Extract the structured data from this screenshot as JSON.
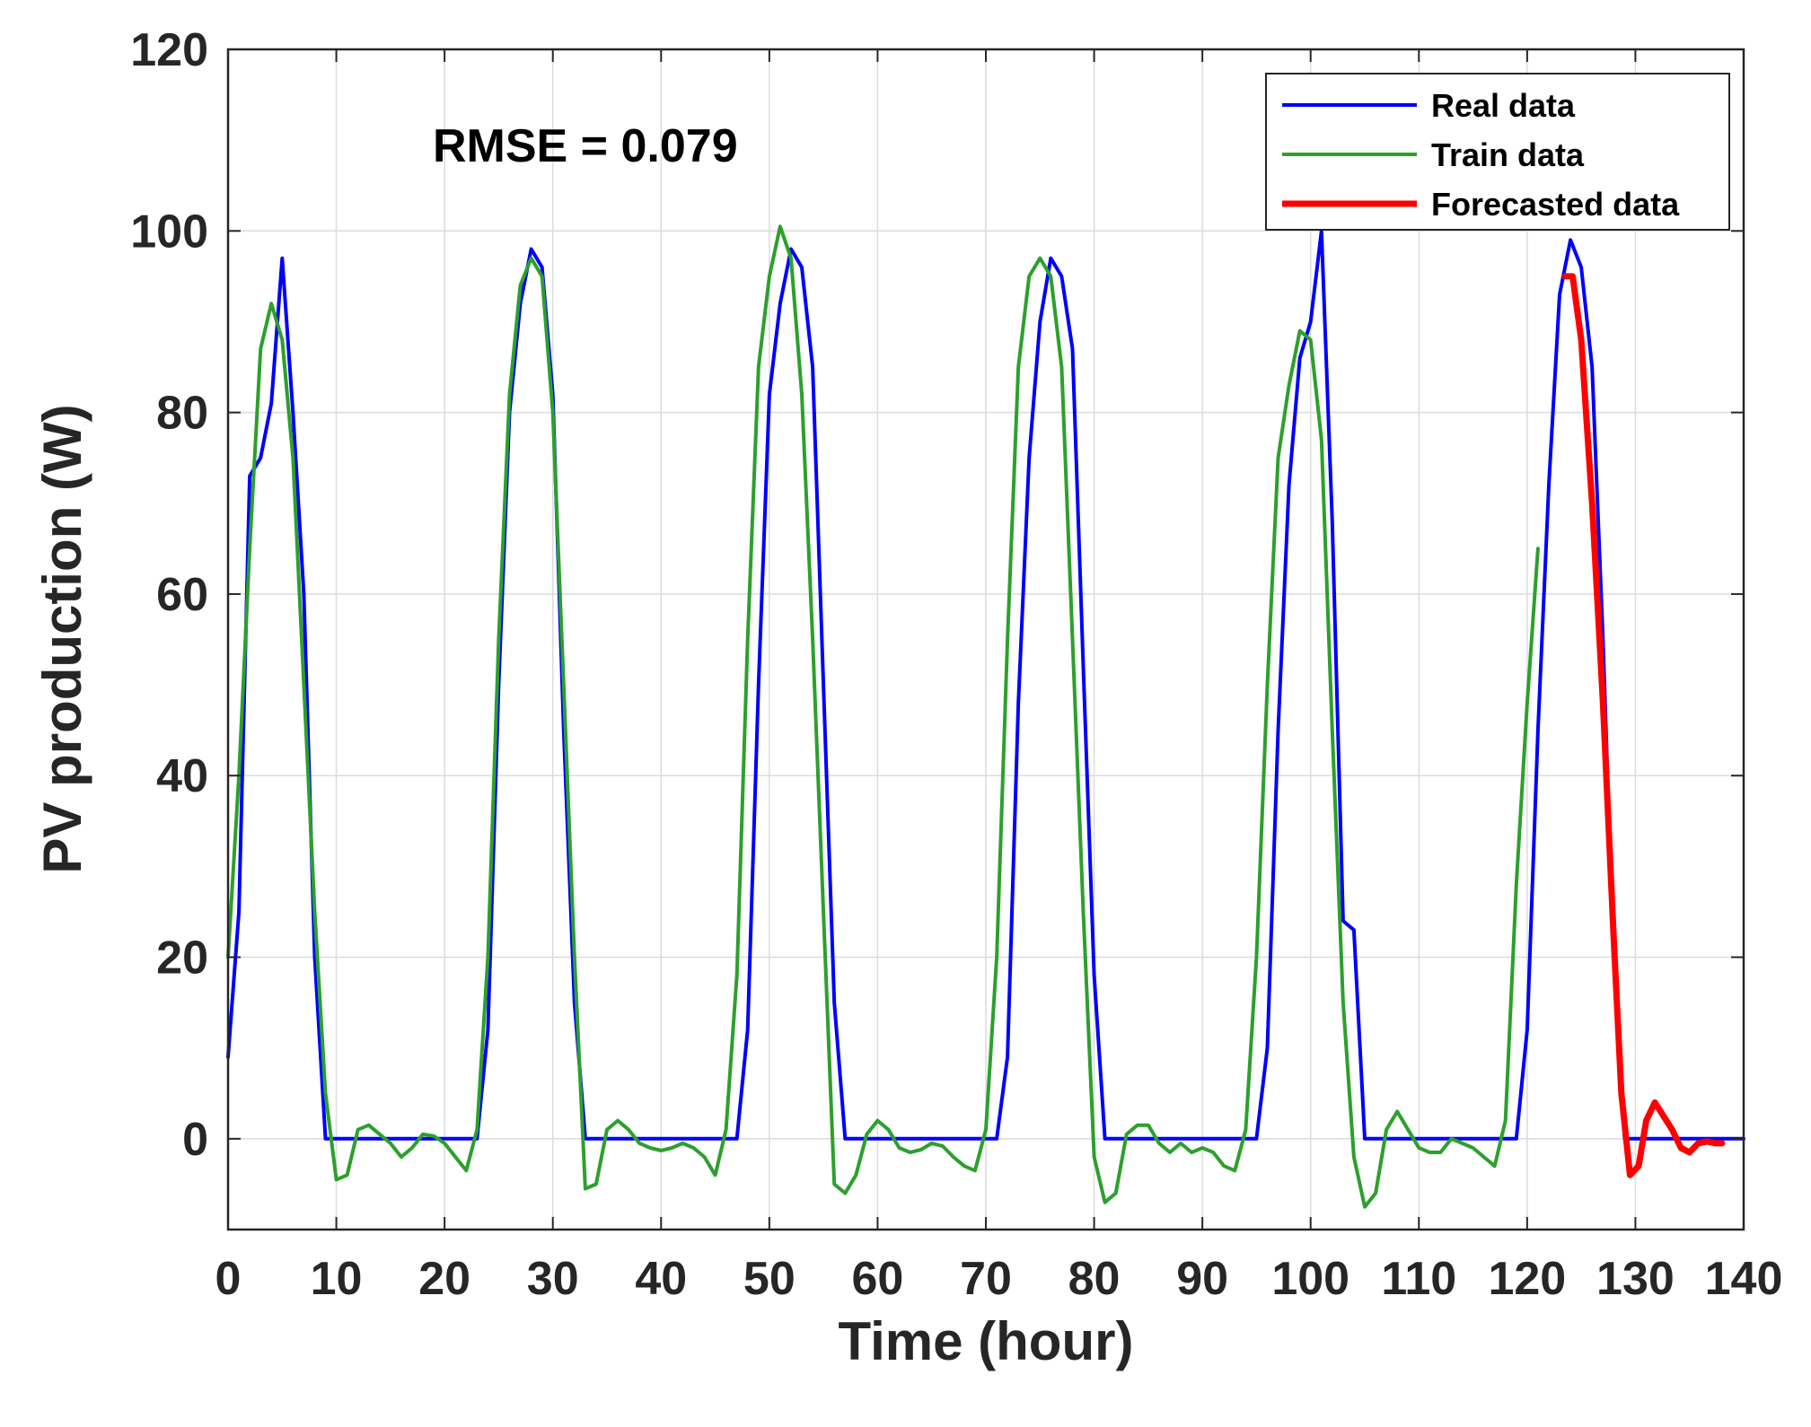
{
  "chart_data": {
    "type": "line",
    "title": "",
    "xlabel": "Time (hour)",
    "ylabel": "PV production (W)",
    "xlim": [
      0,
      140
    ],
    "ylim": [
      -10,
      120
    ],
    "xticks": [
      0,
      10,
      20,
      30,
      40,
      50,
      60,
      70,
      80,
      90,
      100,
      110,
      120,
      130,
      140
    ],
    "yticks": [
      0,
      20,
      40,
      60,
      80,
      100,
      120
    ],
    "grid": true,
    "legend_position": "top-right",
    "annotation": "RMSE = 0.079",
    "series": [
      {
        "name": "Real data",
        "color": "#0000ff",
        "points": [
          [
            0,
            9
          ],
          [
            1,
            25
          ],
          [
            2,
            73
          ],
          [
            3,
            75
          ],
          [
            4,
            81
          ],
          [
            5,
            97
          ],
          [
            6,
            80
          ],
          [
            7,
            60
          ],
          [
            8,
            20
          ],
          [
            9,
            0
          ],
          [
            10,
            0
          ],
          [
            11,
            0
          ],
          [
            12,
            0
          ],
          [
            13,
            0
          ],
          [
            14,
            0
          ],
          [
            15,
            0
          ],
          [
            16,
            0
          ],
          [
            17,
            0
          ],
          [
            18,
            0
          ],
          [
            19,
            0
          ],
          [
            20,
            0
          ],
          [
            21,
            0
          ],
          [
            22,
            0
          ],
          [
            23,
            0
          ],
          [
            24,
            12
          ],
          [
            25,
            50
          ],
          [
            26,
            80
          ],
          [
            27,
            92
          ],
          [
            28,
            98
          ],
          [
            29,
            96
          ],
          [
            30,
            82
          ],
          [
            31,
            45
          ],
          [
            32,
            15
          ],
          [
            33,
            0
          ],
          [
            34,
            0
          ],
          [
            35,
            0
          ],
          [
            36,
            0
          ],
          [
            37,
            0
          ],
          [
            38,
            0
          ],
          [
            39,
            0
          ],
          [
            40,
            0
          ],
          [
            41,
            0
          ],
          [
            42,
            0
          ],
          [
            43,
            0
          ],
          [
            44,
            0
          ],
          [
            45,
            0
          ],
          [
            46,
            0
          ],
          [
            47,
            0
          ],
          [
            48,
            12
          ],
          [
            49,
            50
          ],
          [
            50,
            82
          ],
          [
            51,
            92
          ],
          [
            52,
            98
          ],
          [
            53,
            96
          ],
          [
            54,
            85
          ],
          [
            55,
            50
          ],
          [
            56,
            15
          ],
          [
            57,
            0
          ],
          [
            58,
            0
          ],
          [
            59,
            0
          ],
          [
            60,
            0
          ],
          [
            61,
            0
          ],
          [
            62,
            0
          ],
          [
            63,
            0
          ],
          [
            64,
            0
          ],
          [
            65,
            0
          ],
          [
            66,
            0
          ],
          [
            67,
            0
          ],
          [
            68,
            0
          ],
          [
            69,
            0
          ],
          [
            70,
            0
          ],
          [
            71,
            0
          ],
          [
            72,
            9
          ],
          [
            73,
            48
          ],
          [
            74,
            75
          ],
          [
            75,
            90
          ],
          [
            76,
            97
          ],
          [
            77,
            95
          ],
          [
            78,
            87
          ],
          [
            79,
            52
          ],
          [
            80,
            18
          ],
          [
            81,
            0
          ],
          [
            82,
            0
          ],
          [
            83,
            0
          ],
          [
            84,
            0
          ],
          [
            85,
            0
          ],
          [
            86,
            0
          ],
          [
            87,
            0
          ],
          [
            88,
            0
          ],
          [
            89,
            0
          ],
          [
            90,
            0
          ],
          [
            91,
            0
          ],
          [
            92,
            0
          ],
          [
            93,
            0
          ],
          [
            94,
            0
          ],
          [
            95,
            0
          ],
          [
            96,
            10
          ],
          [
            97,
            45
          ],
          [
            98,
            72
          ],
          [
            99,
            86
          ],
          [
            100,
            90
          ],
          [
            101,
            100
          ],
          [
            102,
            68
          ],
          [
            103,
            24
          ],
          [
            104,
            23
          ],
          [
            105,
            0
          ],
          [
            106,
            0
          ],
          [
            107,
            0
          ],
          [
            108,
            0
          ],
          [
            109,
            0
          ],
          [
            110,
            0
          ],
          [
            111,
            0
          ],
          [
            112,
            0
          ],
          [
            113,
            0
          ],
          [
            114,
            0
          ],
          [
            115,
            0
          ],
          [
            116,
            0
          ],
          [
            117,
            0
          ],
          [
            118,
            0
          ],
          [
            119,
            0
          ],
          [
            120,
            12
          ],
          [
            121,
            45
          ],
          [
            122,
            72
          ],
          [
            123,
            93
          ],
          [
            124,
            99
          ],
          [
            125,
            96
          ],
          [
            126,
            85
          ],
          [
            127,
            55
          ],
          [
            128,
            20
          ],
          [
            129,
            0
          ],
          [
            130,
            0
          ],
          [
            131,
            0
          ],
          [
            132,
            0
          ],
          [
            133,
            0
          ],
          [
            134,
            0
          ],
          [
            135,
            0
          ],
          [
            136,
            0
          ],
          [
            137,
            0
          ],
          [
            138,
            0
          ],
          [
            139,
            0
          ],
          [
            140,
            0
          ]
        ]
      },
      {
        "name": "Train data",
        "color": "#2ca02c",
        "points": [
          [
            0,
            20
          ],
          [
            1,
            40
          ],
          [
            2,
            65
          ],
          [
            3,
            87
          ],
          [
            4,
            92
          ],
          [
            5,
            88
          ],
          [
            6,
            75
          ],
          [
            7,
            50
          ],
          [
            8,
            25
          ],
          [
            9,
            5
          ],
          [
            10,
            -4.5
          ],
          [
            11,
            -4
          ],
          [
            12,
            1
          ],
          [
            13,
            1.5
          ],
          [
            14,
            0.5
          ],
          [
            15,
            -0.5
          ],
          [
            16,
            -2
          ],
          [
            17,
            -1
          ],
          [
            18,
            0.5
          ],
          [
            19,
            0.3
          ],
          [
            20,
            -0.5
          ],
          [
            21,
            -2
          ],
          [
            22,
            -3.5
          ],
          [
            23,
            1
          ],
          [
            24,
            20
          ],
          [
            25,
            55
          ],
          [
            26,
            82
          ],
          [
            27,
            94
          ],
          [
            28,
            97
          ],
          [
            29,
            95
          ],
          [
            30,
            80
          ],
          [
            31,
            50
          ],
          [
            32,
            20
          ],
          [
            33,
            -5.5
          ],
          [
            34,
            -5
          ],
          [
            35,
            1
          ],
          [
            36,
            2
          ],
          [
            37,
            1
          ],
          [
            38,
            -0.5
          ],
          [
            39,
            -1
          ],
          [
            40,
            -1.3
          ],
          [
            41,
            -1
          ],
          [
            42,
            -0.5
          ],
          [
            43,
            -1
          ],
          [
            44,
            -2
          ],
          [
            45,
            -4
          ],
          [
            46,
            1
          ],
          [
            47,
            18
          ],
          [
            48,
            55
          ],
          [
            49,
            85
          ],
          [
            50,
            95
          ],
          [
            51,
            100.5
          ],
          [
            52,
            97
          ],
          [
            53,
            82
          ],
          [
            54,
            55
          ],
          [
            55,
            25
          ],
          [
            56,
            -5
          ],
          [
            57,
            -6
          ],
          [
            58,
            -4
          ],
          [
            59,
            0.5
          ],
          [
            60,
            2
          ],
          [
            61,
            1
          ],
          [
            62,
            -1
          ],
          [
            63,
            -1.5
          ],
          [
            64,
            -1.2
          ],
          [
            65,
            -0.5
          ],
          [
            66,
            -0.8
          ],
          [
            67,
            -2
          ],
          [
            68,
            -3
          ],
          [
            69,
            -3.5
          ],
          [
            70,
            1
          ],
          [
            71,
            20
          ],
          [
            72,
            55
          ],
          [
            73,
            85
          ],
          [
            74,
            95
          ],
          [
            75,
            97
          ],
          [
            76,
            95
          ],
          [
            77,
            85
          ],
          [
            78,
            55
          ],
          [
            79,
            25
          ],
          [
            80,
            -2
          ],
          [
            81,
            -7
          ],
          [
            82,
            -6
          ],
          [
            83,
            0.5
          ],
          [
            84,
            1.5
          ],
          [
            85,
            1.5
          ],
          [
            86,
            -0.5
          ],
          [
            87,
            -1.5
          ],
          [
            88,
            -0.5
          ],
          [
            89,
            -1.5
          ],
          [
            90,
            -1
          ],
          [
            91,
            -1.5
          ],
          [
            92,
            -3
          ],
          [
            93,
            -3.5
          ],
          [
            94,
            1
          ],
          [
            95,
            20
          ],
          [
            96,
            50
          ],
          [
            97,
            75
          ],
          [
            98,
            83
          ],
          [
            99,
            89
          ],
          [
            100,
            88
          ],
          [
            101,
            77
          ],
          [
            102,
            45
          ],
          [
            103,
            15
          ],
          [
            104,
            -2
          ],
          [
            105,
            -7.5
          ],
          [
            106,
            -6
          ],
          [
            107,
            1
          ],
          [
            108,
            3
          ],
          [
            109,
            1
          ],
          [
            110,
            -1
          ],
          [
            111,
            -1.5
          ],
          [
            112,
            -1.5
          ],
          [
            113,
            0
          ],
          [
            114,
            -0.5
          ],
          [
            115,
            -1
          ],
          [
            116,
            -2
          ],
          [
            117,
            -3
          ],
          [
            118,
            2
          ],
          [
            119,
            28
          ],
          [
            120,
            48
          ],
          [
            121,
            65
          ]
        ]
      },
      {
        "name": "Forecasted data",
        "color": "#ff0000",
        "points": [
          [
            123.5,
            95
          ],
          [
            124.2,
            95
          ],
          [
            125,
            88
          ],
          [
            126,
            70
          ],
          [
            127,
            48
          ],
          [
            128,
            22
          ],
          [
            128.7,
            5
          ],
          [
            129.5,
            -4
          ],
          [
            130.3,
            -3
          ],
          [
            131,
            2
          ],
          [
            131.8,
            4
          ],
          [
            132.6,
            2.5
          ],
          [
            133.4,
            1
          ],
          [
            134.2,
            -1
          ],
          [
            135,
            -1.5
          ],
          [
            135.8,
            -0.5
          ],
          [
            136.6,
            -0.3
          ],
          [
            137.4,
            -0.5
          ],
          [
            138,
            -0.5
          ]
        ]
      }
    ]
  }
}
